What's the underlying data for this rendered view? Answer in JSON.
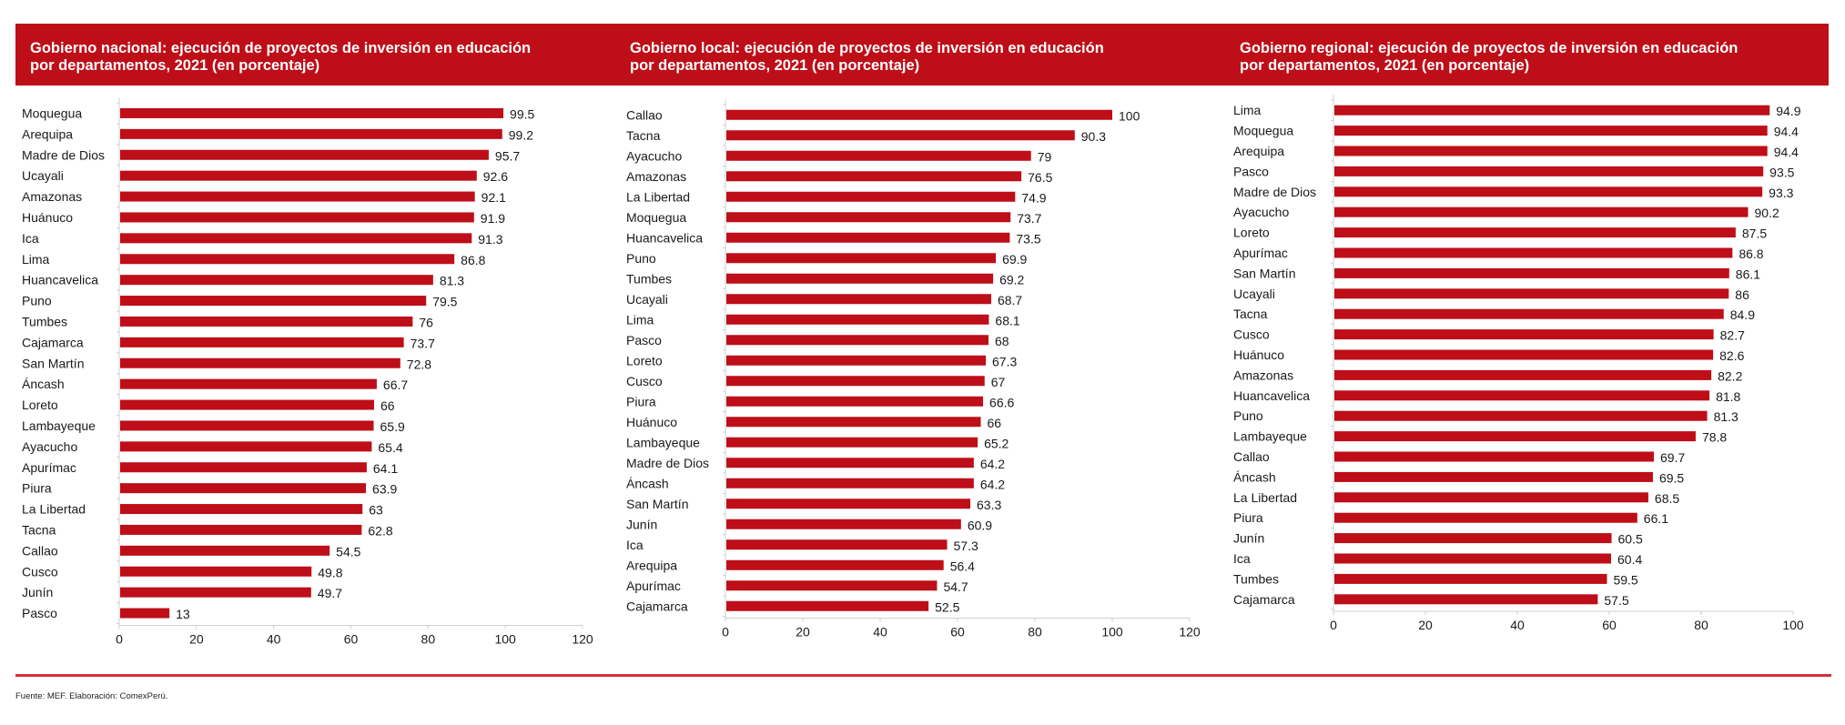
{
  "colors": {
    "bar": "#be0e18",
    "header": "#be0e18",
    "axis": "#d0d0d0",
    "footer_line": "#d32e3b"
  },
  "footer": {
    "source": "Fuente: MEF. Elaboración: ComexPerú."
  },
  "chart_data": [
    {
      "type": "bar",
      "orientation": "horizontal",
      "title": "Gobierno nacional: ejecución de proyectos de inversión en educación\npor departamentos, 2021 (en porcentaje)",
      "xlabel": "",
      "ylabel": "",
      "xlim": [
        0,
        120
      ],
      "xticks": [
        0,
        20,
        40,
        60,
        80,
        100,
        120
      ],
      "grid": false,
      "categories": [
        "Moquegua",
        "Arequipa",
        "Madre de Dios",
        "Ucayali",
        "Amazonas",
        "Huánuco",
        "Ica",
        "Lima",
        "Huancavelica",
        "Puno",
        "Tumbes",
        "Cajamarca",
        "San Martín",
        "Áncash",
        "Loreto",
        "Lambayeque",
        "Ayacucho",
        "Apurímac",
        "Piura",
        "La Libertad",
        "Tacna",
        "Callao",
        "Cusco",
        "Junín",
        "Pasco"
      ],
      "values": [
        99.5,
        99.2,
        95.7,
        92.6,
        92.1,
        91.9,
        91.3,
        86.8,
        81.3,
        79.5,
        76,
        73.7,
        72.8,
        66.7,
        66,
        65.9,
        65.4,
        64.1,
        63.9,
        63,
        62.8,
        54.5,
        49.8,
        49.7,
        13
      ],
      "labels": [
        "99.5",
        "99.2",
        "95.7",
        "92.6",
        "92.1",
        "91.9",
        "91.3",
        "86.8",
        "81.3",
        "79.5",
        "76",
        "73.7",
        "72.8",
        "66.7",
        "66",
        "65.9",
        "65.4",
        "64.1",
        "63.9",
        "63",
        "62.8",
        "54.5",
        "49.8",
        "49.7",
        "13"
      ]
    },
    {
      "type": "bar",
      "orientation": "horizontal",
      "title": "Gobierno local: ejecución de proyectos de inversión en educación\npor departamentos, 2021 (en porcentaje)",
      "xlabel": "",
      "ylabel": "",
      "xlim": [
        0,
        120
      ],
      "xticks": [
        0,
        20,
        40,
        60,
        80,
        100,
        120
      ],
      "grid": false,
      "categories": [
        "Callao",
        "Tacna",
        "Ayacucho",
        "Amazonas",
        "La Libertad",
        "Moquegua",
        "Huancavelica",
        "Puno",
        "Tumbes",
        "Ucayali",
        "Lima",
        "Pasco",
        "Loreto",
        "Cusco",
        "Piura",
        "Huánuco",
        "Lambayeque",
        "Madre de Dios",
        "Áncash",
        "San Martín",
        "Junín",
        "Ica",
        "Arequipa",
        "Apurímac",
        "Cajamarca"
      ],
      "values": [
        100,
        90.3,
        79,
        76.5,
        74.9,
        73.7,
        73.5,
        69.9,
        69.2,
        68.7,
        68.1,
        68,
        67.3,
        67,
        66.6,
        66,
        65.2,
        64.2,
        64.2,
        63.3,
        60.9,
        57.3,
        56.4,
        54.7,
        52.5
      ],
      "labels": [
        "100",
        "90.3",
        "79",
        "76.5",
        "74.9",
        "73.7",
        "73.5",
        "69.9",
        "69.2",
        "68.7",
        "68.1",
        "68",
        "67.3",
        "67",
        "66.6",
        "66",
        "65.2",
        "64.2",
        "64.2",
        "63.3",
        "60.9",
        "57.3",
        "56.4",
        "54.7",
        "52.5"
      ]
    },
    {
      "type": "bar",
      "orientation": "horizontal",
      "title": "Gobierno regional: ejecución de proyectos de inversión en educación\npor departamentos, 2021 (en porcentaje)",
      "xlabel": "",
      "ylabel": "",
      "xlim": [
        0,
        100
      ],
      "xticks": [
        0,
        20,
        40,
        60,
        80,
        100
      ],
      "grid": false,
      "categories": [
        "Lima",
        "Moquegua",
        "Arequipa",
        "Pasco",
        "Madre de Dios",
        "Ayacucho",
        "Loreto",
        "Apurímac",
        "San Martín",
        "Ucayali",
        "Tacna",
        "Cusco",
        "Huánuco",
        "Amazonas",
        "Huancavelica",
        "Puno",
        "Lambayeque",
        "Callao",
        "Áncash",
        "La Libertad",
        "Piura",
        "Junín",
        "Ica",
        "Tumbes",
        "Cajamarca"
      ],
      "values": [
        94.9,
        94.4,
        94.4,
        93.5,
        93.3,
        90.2,
        87.5,
        86.8,
        86.1,
        86,
        84.9,
        82.7,
        82.6,
        82.2,
        81.8,
        81.3,
        78.8,
        69.7,
        69.5,
        68.5,
        66.1,
        60.5,
        60.4,
        59.5,
        57.5
      ],
      "labels": [
        "94.9",
        "94.4",
        "94.4",
        "93.5",
        "93.3",
        "90.2",
        "87.5",
        "86.8",
        "86.1",
        "86",
        "84.9",
        "82.7",
        "82.6",
        "82.2",
        "81.8",
        "81.3",
        "78.8",
        "69.7",
        "69.5",
        "68.5",
        "66.1",
        "60.5",
        "60.4",
        "59.5",
        "57.5"
      ]
    }
  ]
}
